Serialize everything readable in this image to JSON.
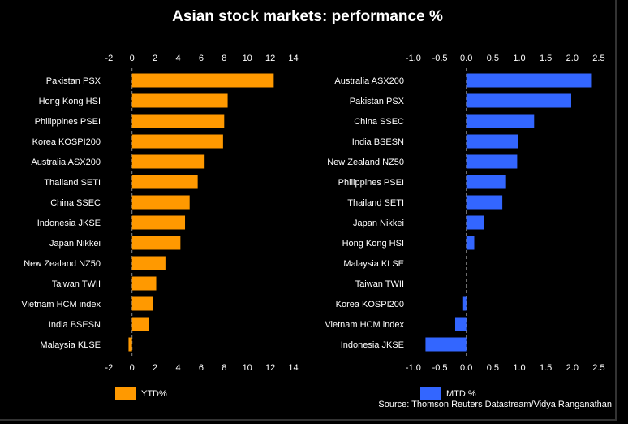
{
  "chart_data": [
    {
      "type": "bar",
      "orientation": "horizontal",
      "title": "Asian stock markets: performance %",
      "legend": "YTD%",
      "categories": [
        "Pakistan PSX",
        "Hong Kong HSI",
        "Philippines PSEI",
        "Korea KOSPI200",
        "Australia ASX200",
        "Thailand SETI",
        "China SSEC",
        "Indonesia JKSE",
        "Japan Nikkei",
        "New Zealand NZ50",
        "Taiwan TWII",
        "Vietnam HCM index",
        "India BSESN",
        "Malaysia KLSE"
      ],
      "values": [
        12.3,
        8.3,
        8.0,
        7.9,
        6.3,
        5.7,
        5.0,
        4.6,
        4.2,
        2.9,
        2.1,
        1.8,
        1.5,
        -0.3
      ],
      "xlim": [
        -2,
        14
      ],
      "ticks": [
        "-2",
        "0",
        "2",
        "4",
        "6",
        "8",
        "10",
        "12",
        "14"
      ],
      "tick_values": [
        -2,
        0,
        2,
        4,
        6,
        8,
        10,
        12,
        14
      ],
      "color": "#ff9900"
    },
    {
      "type": "bar",
      "orientation": "horizontal",
      "legend": "MTD %",
      "categories": [
        "Australia ASX200",
        "Pakistan PSX",
        "China SSEC",
        "India BSESN",
        "New Zealand NZ50",
        "Philippines PSEI",
        "Thailand SETI",
        "Japan Nikkei",
        "Hong Kong HSI",
        "Malaysia KLSE",
        "Taiwan TWII",
        "Korea KOSPI200",
        "Vietnam HCM index",
        "Indonesia JKSE"
      ],
      "values": [
        2.37,
        1.98,
        1.28,
        0.98,
        0.96,
        0.75,
        0.68,
        0.33,
        0.15,
        0,
        0,
        -0.06,
        -0.21,
        -0.77
      ],
      "xlim": [
        -1.0,
        2.5
      ],
      "ticks": [
        "-1.0",
        "-0.5",
        "0.0",
        "0.5",
        "1.0",
        "1.5",
        "2.0",
        "2.5"
      ],
      "tick_values": [
        -1.0,
        -0.5,
        0,
        0.5,
        1.0,
        1.5,
        2.0,
        2.5
      ],
      "color": "#3366ff"
    }
  ],
  "title": "Asian stock markets: performance %",
  "source": "Source: Thomson Reuters Datastream/Vidya Ranganathan"
}
